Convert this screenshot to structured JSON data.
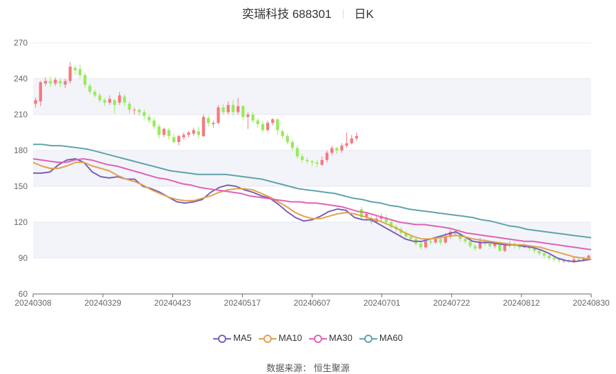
{
  "header": {
    "stock": "奕瑞科技 688301",
    "period": "日K"
  },
  "source_text": "数据来源：  恒生聚源",
  "colors": {
    "up": "#f7787f",
    "down": "#98ea5a",
    "ma5": "#7a5fb8",
    "ma10": "#e3a04c",
    "ma30": "#e061b6",
    "ma60": "#5fa3a9",
    "band": "#f2f4fa",
    "grid": "#e6e9f0"
  },
  "chart_data": {
    "type": "candlestick",
    "title": "奕瑞科技 688301  日K",
    "ylim": [
      60,
      270
    ],
    "yticks": [
      60,
      90,
      120,
      150,
      180,
      210,
      240,
      270
    ],
    "xtick_labels": [
      "20240308",
      "20240329",
      "20240423",
      "20240517",
      "20240607",
      "20240701",
      "20240722",
      "20240812",
      "20240830"
    ],
    "legend": [
      "MA5",
      "MA10",
      "MA30",
      "MA60"
    ],
    "legend_position": "bottom",
    "candles": [
      [
        219,
        222,
        224,
        216
      ],
      [
        221,
        237,
        238,
        217
      ],
      [
        236,
        238,
        241,
        234
      ],
      [
        238,
        236,
        242,
        233
      ],
      [
        236,
        239,
        241,
        234
      ],
      [
        238,
        236,
        240,
        233
      ],
      [
        235,
        238,
        240,
        232
      ],
      [
        238,
        250,
        254,
        236
      ],
      [
        249,
        247,
        251,
        243
      ],
      [
        248,
        243,
        252,
        240
      ],
      [
        243,
        235,
        245,
        232
      ],
      [
        234,
        229,
        236,
        227
      ],
      [
        229,
        226,
        231,
        224
      ],
      [
        226,
        222,
        228,
        220
      ],
      [
        222,
        220,
        224,
        217
      ],
      [
        220,
        223,
        226,
        218
      ],
      [
        222,
        218,
        223,
        211
      ],
      [
        220,
        226,
        229,
        218
      ],
      [
        225,
        220,
        227,
        217
      ],
      [
        219,
        214,
        221,
        211
      ],
      [
        214,
        214,
        216,
        210
      ],
      [
        214,
        212,
        215,
        209
      ],
      [
        212,
        209,
        214,
        206
      ],
      [
        208,
        205,
        210,
        203
      ],
      [
        205,
        200,
        207,
        198
      ],
      [
        200,
        193,
        202,
        190
      ],
      [
        193,
        198,
        199,
        191
      ],
      [
        197,
        192,
        199,
        189
      ],
      [
        191,
        187,
        194,
        186
      ],
      [
        187,
        192,
        193,
        184
      ],
      [
        191,
        193,
        195,
        189
      ],
      [
        193,
        195,
        196,
        191
      ],
      [
        194,
        197,
        199,
        192
      ],
      [
        196,
        193,
        200,
        190
      ],
      [
        192,
        208,
        210,
        191
      ],
      [
        207,
        203,
        209,
        200
      ],
      [
        202,
        203,
        205,
        199
      ],
      [
        203,
        216,
        218,
        202
      ],
      [
        216,
        212,
        219,
        210
      ],
      [
        212,
        218,
        221,
        210
      ],
      [
        218,
        212,
        222,
        209
      ],
      [
        212,
        217,
        224,
        210
      ],
      [
        217,
        208,
        218,
        205
      ],
      [
        208,
        210,
        212,
        198
      ],
      [
        210,
        205,
        212,
        203
      ],
      [
        205,
        202,
        207,
        199
      ],
      [
        202,
        197,
        204,
        195
      ],
      [
        197,
        203,
        205,
        196
      ],
      [
        203,
        206,
        207,
        201
      ],
      [
        206,
        197,
        207,
        193
      ],
      [
        196,
        192,
        198,
        190
      ],
      [
        192,
        187,
        194,
        185
      ],
      [
        187,
        182,
        189,
        180
      ],
      [
        182,
        175,
        184,
        173
      ],
      [
        175,
        172,
        177,
        170
      ],
      [
        172,
        171,
        174,
        169
      ],
      [
        171,
        170,
        172,
        167
      ],
      [
        170,
        169,
        172,
        166
      ],
      [
        168,
        172,
        175,
        167
      ],
      [
        172,
        178,
        180,
        170
      ],
      [
        178,
        182,
        184,
        176
      ],
      [
        182,
        180,
        183,
        177
      ],
      [
        180,
        184,
        186,
        178
      ],
      [
        184,
        186,
        195,
        182
      ],
      [
        186,
        190,
        193,
        185
      ],
      [
        190,
        192,
        195,
        188
      ],
      [
        131,
        124,
        133,
        122
      ],
      [
        124,
        127,
        128,
        121
      ],
      [
        123,
        120,
        125,
        118
      ],
      [
        120,
        123,
        125,
        119
      ],
      [
        123,
        125,
        127,
        121
      ],
      [
        124,
        120,
        126,
        118
      ],
      [
        120,
        116,
        122,
        114
      ],
      [
        116,
        114,
        118,
        112
      ],
      [
        114,
        111,
        116,
        109
      ],
      [
        111,
        108,
        113,
        106
      ],
      [
        108,
        106,
        110,
        104
      ],
      [
        106,
        102,
        108,
        100
      ],
      [
        102,
        99,
        104,
        97
      ],
      [
        99,
        104,
        106,
        98
      ],
      [
        104,
        103,
        106,
        101
      ],
      [
        103,
        106,
        108,
        102
      ],
      [
        106,
        103,
        108,
        101
      ],
      [
        103,
        108,
        111,
        102
      ],
      [
        108,
        112,
        114,
        106
      ],
      [
        112,
        110,
        114,
        108
      ],
      [
        110,
        106,
        112,
        104
      ],
      [
        106,
        104,
        108,
        102
      ],
      [
        104,
        100,
        106,
        98
      ],
      [
        100,
        98,
        102,
        96
      ],
      [
        98,
        104,
        107,
        97
      ],
      [
        104,
        102,
        106,
        100
      ],
      [
        102,
        100,
        104,
        98
      ],
      [
        100,
        102,
        104,
        98
      ],
      [
        102,
        96,
        104,
        95
      ],
      [
        96,
        101,
        103,
        95
      ],
      [
        101,
        102,
        104,
        99
      ],
      [
        102,
        100,
        103,
        98
      ],
      [
        100,
        99,
        102,
        97
      ],
      [
        99,
        100,
        102,
        98
      ],
      [
        100,
        98,
        101,
        96
      ],
      [
        98,
        96,
        99,
        94
      ],
      [
        96,
        94,
        97,
        92
      ],
      [
        94,
        92,
        95,
        90
      ],
      [
        92,
        90,
        93,
        88
      ],
      [
        90,
        89,
        91,
        87
      ],
      [
        89,
        88,
        90,
        86
      ],
      [
        88,
        88,
        89,
        86
      ],
      [
        88,
        87,
        89,
        86
      ],
      [
        87,
        89,
        91,
        86
      ],
      [
        89,
        88,
        90,
        87
      ],
      [
        88,
        90,
        91,
        87
      ],
      [
        90,
        92,
        93,
        89
      ]
    ],
    "ma_lines": [
      {
        "name": "MA5",
        "values": [
          161,
          161,
          162,
          168,
          172,
          173,
          170,
          162,
          158,
          157,
          158,
          156,
          156,
          150,
          148,
          145,
          141,
          137,
          136,
          137,
          139,
          145,
          149,
          151,
          150,
          147,
          145,
          142,
          140,
          135,
          129,
          124,
          121,
          122,
          125,
          129,
          131,
          130,
          124,
          122,
          122,
          118,
          114,
          110,
          106,
          104,
          104,
          106,
          108,
          110,
          112,
          108,
          104,
          103,
          103,
          102,
          101,
          101,
          100,
          99,
          97,
          94,
          90,
          88,
          87,
          88,
          89
        ]
      },
      {
        "name": "MA10",
        "values": [
          170,
          167,
          165,
          165,
          167,
          170,
          170,
          167,
          165,
          163,
          159,
          156,
          154,
          151,
          147,
          144,
          141,
          139,
          138,
          138,
          140,
          142,
          145,
          147,
          148,
          148,
          147,
          144,
          141,
          137,
          133,
          128,
          125,
          123,
          123,
          125,
          127,
          128,
          127,
          125,
          123,
          121,
          118,
          115,
          111,
          108,
          106,
          106,
          107,
          108,
          109,
          108,
          106,
          105,
          104,
          103,
          102,
          101,
          101,
          100,
          99,
          97,
          95,
          93,
          91,
          90,
          89
        ]
      },
      {
        "name": "MA30",
        "values": [
          173,
          172,
          171,
          170,
          170,
          172,
          173,
          172,
          170,
          168,
          167,
          165,
          163,
          161,
          159,
          157,
          156,
          154,
          152,
          151,
          149,
          148,
          147,
          146,
          145,
          144,
          142,
          141,
          140,
          139,
          138,
          137,
          137,
          136,
          136,
          135,
          134,
          133,
          131,
          129,
          128,
          126,
          124,
          122,
          120,
          119,
          118,
          118,
          117,
          116,
          115,
          113,
          111,
          110,
          109,
          108,
          107,
          106,
          105,
          104,
          104,
          103,
          102,
          101,
          100,
          99,
          98,
          97
        ]
      },
      {
        "name": "MA60",
        "values": [
          185,
          185,
          184,
          184,
          183,
          182,
          181,
          179,
          177,
          175,
          173,
          171,
          169,
          167,
          165,
          163,
          162,
          161,
          160,
          160,
          160,
          160,
          159,
          158,
          157,
          156,
          154,
          152,
          150,
          148,
          147,
          146,
          145,
          144,
          142,
          140,
          139,
          137,
          136,
          134,
          133,
          131,
          130,
          129,
          128,
          127,
          126,
          125,
          124,
          122,
          121,
          119,
          117,
          116,
          114,
          113,
          112,
          111,
          110,
          109,
          108,
          107
        ]
      }
    ]
  }
}
